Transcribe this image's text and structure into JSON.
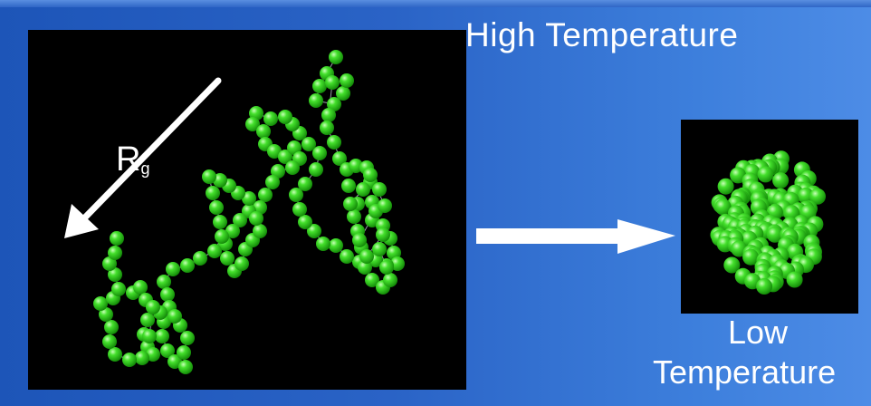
{
  "labels": {
    "high": "High Temperature",
    "low_line1": "Low",
    "low_line2": "Temperature",
    "rg_main": "R",
    "rg_sub": "g"
  },
  "colors": {
    "bead": "#33dd22",
    "bond": "#9aa0a8",
    "arrow": "#ffffff"
  },
  "icons": {
    "rg_arrow": "diagonal-arrow-icon",
    "transition_arrow": "right-arrow-icon"
  }
}
